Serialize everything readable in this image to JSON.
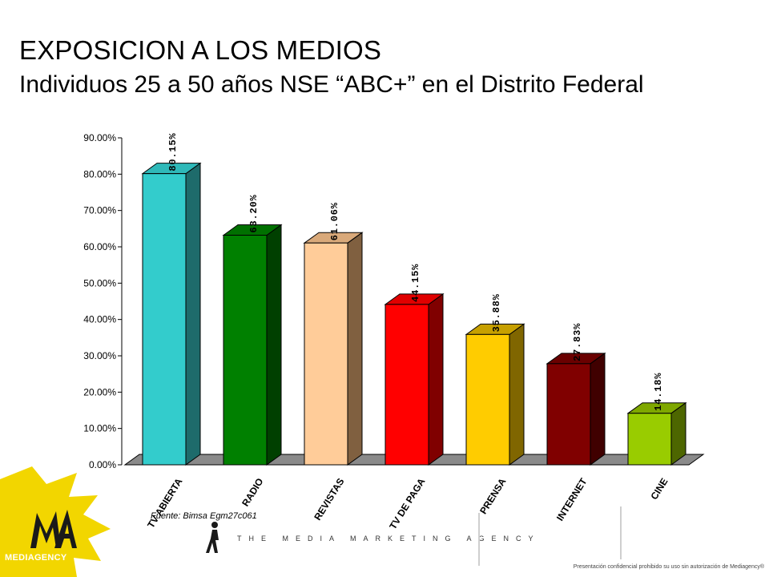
{
  "header": {
    "title": "EXPOSICION A LOS MEDIOS",
    "subtitle": "Individuos 25 a 50 años NSE “ABC+” en el Distrito Federal"
  },
  "footer": {
    "source": "Fuente: Bimsa Egm27c061",
    "tagline": "THE MEDIA MARKETING AGENCY",
    "brand": "MEDIAGENCY",
    "disclaimer": "Presentación confidencial prohibido su uso sin autorización de Mediagency®"
  },
  "colors": {
    "floor": "#8a8a8a",
    "logo_splash": "#f2d600"
  },
  "chart_data": {
    "type": "bar",
    "style": "3d",
    "categories": [
      "TV ABIERTA",
      "RADIO",
      "REVISTAS",
      "TV DE PAGA",
      "PRENSA",
      "INTERNET",
      "CINE"
    ],
    "values": [
      80.15,
      63.2,
      61.06,
      44.15,
      35.88,
      27.83,
      14.18
    ],
    "data_labels": [
      "80.15%",
      "63.20%",
      "61.06%",
      "44.15%",
      "35.88%",
      "27.83%",
      "14.18%"
    ],
    "ylim": [
      0,
      90
    ],
    "yticks": [
      0,
      10,
      20,
      30,
      40,
      50,
      60,
      70,
      80,
      90
    ],
    "ytick_labels": [
      "0.00%",
      "10.00%",
      "20.00%",
      "30.00%",
      "40.00%",
      "50.00%",
      "60.00%",
      "70.00%",
      "80.00%",
      "90.00%"
    ],
    "grid": false,
    "legend": "none",
    "bar_colors": [
      {
        "front": "#33cccc",
        "top": "#2fb9b9",
        "side": "#1e6b6b"
      },
      {
        "front": "#008000",
        "top": "#007000",
        "side": "#004000"
      },
      {
        "front": "#ffcc99",
        "top": "#d9a97a",
        "side": "#806040"
      },
      {
        "front": "#ff0000",
        "top": "#e00000",
        "side": "#800000"
      },
      {
        "front": "#ffcc00",
        "top": "#c7a000",
        "side": "#806600"
      },
      {
        "front": "#800000",
        "top": "#6a0000",
        "side": "#400000"
      },
      {
        "front": "#99cc00",
        "top": "#7fa800",
        "side": "#4d6600"
      }
    ]
  }
}
